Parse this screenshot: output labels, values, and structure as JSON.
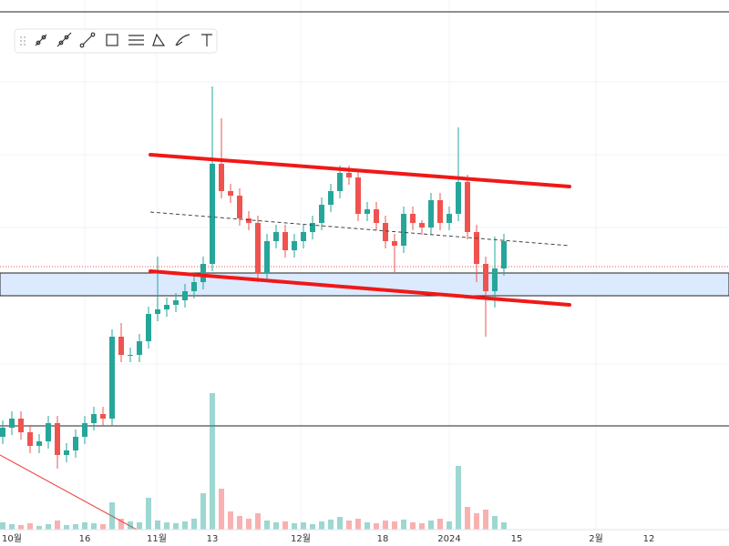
{
  "chart_data": {
    "type": "candlestick",
    "x_labels": [
      "10월",
      "16",
      "11월",
      "13",
      "12월",
      "18",
      "2024",
      "15",
      "2월",
      "12"
    ],
    "open": [
      120,
      130,
      140,
      125,
      110,
      115,
      135,
      100,
      105,
      120,
      135,
      145,
      140,
      230,
      210,
      210,
      225,
      255,
      260,
      265,
      270,
      280,
      290,
      310,
      420,
      390,
      385,
      360,
      355,
      300,
      335,
      345,
      325,
      335,
      345,
      355,
      375,
      390,
      410,
      405,
      365,
      370,
      355,
      335,
      330,
      365,
      355,
      350,
      380,
      355,
      365,
      400,
      345,
      310,
      280,
      305
    ],
    "high": [
      138,
      148,
      148,
      133,
      123,
      143,
      143,
      113,
      128,
      143,
      153,
      153,
      238,
      245,
      218,
      233,
      263,
      318,
      273,
      278,
      288,
      298,
      318,
      505,
      470,
      398,
      393,
      368,
      363,
      343,
      353,
      353,
      343,
      353,
      363,
      383,
      398,
      418,
      418,
      413,
      378,
      378,
      363,
      343,
      373,
      373,
      358,
      388,
      388,
      373,
      460,
      408,
      353,
      318,
      340,
      343
    ],
    "low": [
      112,
      122,
      117,
      102,
      102,
      107,
      85,
      92,
      97,
      112,
      127,
      132,
      132,
      202,
      202,
      202,
      217,
      247,
      252,
      257,
      262,
      272,
      282,
      302,
      382,
      377,
      352,
      347,
      290,
      292,
      327,
      317,
      317,
      327,
      337,
      347,
      367,
      382,
      397,
      357,
      357,
      347,
      327,
      300,
      322,
      347,
      342,
      342,
      347,
      347,
      357,
      337,
      290,
      230,
      262,
      297
    ],
    "close": [
      130,
      140,
      125,
      110,
      115,
      135,
      100,
      105,
      120,
      135,
      145,
      140,
      230,
      210,
      210,
      225,
      255,
      260,
      265,
      270,
      280,
      290,
      310,
      420,
      390,
      385,
      360,
      355,
      300,
      335,
      345,
      325,
      335,
      345,
      355,
      375,
      390,
      410,
      405,
      365,
      370,
      355,
      335,
      330,
      365,
      355,
      350,
      380,
      355,
      365,
      400,
      345,
      310,
      280,
      305,
      335
    ],
    "volume": [
      8,
      6,
      5,
      7,
      4,
      6,
      10,
      5,
      6,
      8,
      7,
      6,
      30,
      12,
      9,
      8,
      35,
      10,
      8,
      7,
      9,
      12,
      40,
      150,
      45,
      20,
      15,
      12,
      18,
      10,
      8,
      9,
      7,
      8,
      6,
      9,
      11,
      14,
      10,
      12,
      8,
      7,
      10,
      9,
      11,
      8,
      7,
      10,
      12,
      9,
      70,
      25,
      18,
      22,
      15,
      8
    ],
    "ylim": [
      0,
      600
    ],
    "up_color": "#26a69a",
    "down_color": "#ef5350"
  }
}
